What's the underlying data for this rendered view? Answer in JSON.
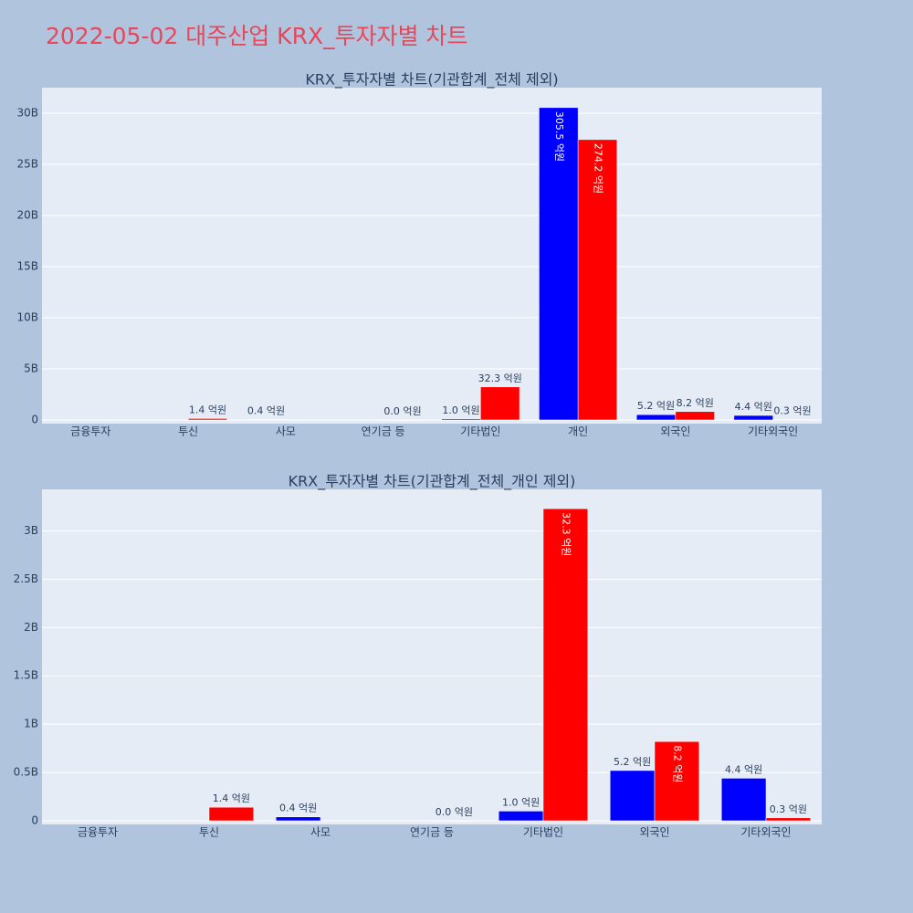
{
  "title": "2022-05-02 대주산업 KRX_투자자별 차트",
  "chart_data": [
    {
      "type": "bar",
      "title": "KRX_투자자별 차트(기관합계_전체 제외)",
      "categories": [
        "금융투자",
        "투신",
        "사모",
        "연기금 등",
        "기타법인",
        "개인",
        "외국인",
        "기타외국인"
      ],
      "series": [
        {
          "color": "#0000ff",
          "values": [
            null,
            null,
            40000000,
            null,
            100000000,
            30550000000,
            520000000,
            440000000
          ],
          "value_labels": [
            null,
            null,
            "0.4 억원",
            null,
            "1.0 억원",
            "305.5 억원",
            "5.2 억원",
            "4.4 억원"
          ]
        },
        {
          "color": "#ff0000",
          "values": [
            null,
            140000000,
            null,
            0,
            3230000000,
            27420000000,
            820000000,
            30000000
          ],
          "value_labels": [
            null,
            "1.4 억원",
            null,
            "0.0 억원",
            "32.3 억원",
            "274.2 억원",
            "8.2 억원",
            "0.3 억원"
          ]
        }
      ],
      "ylim": [
        -360000000,
        32500000000
      ],
      "yticks": [
        0,
        {
          "value": 5000000000,
          "label": "5B"
        },
        {
          "value": 10000000000,
          "label": "10B"
        },
        {
          "value": 15000000000,
          "label": "15B"
        },
        {
          "value": 20000000000,
          "label": "20B"
        },
        {
          "value": 25000000000,
          "label": "25B"
        },
        {
          "value": 30000000000,
          "label": "30B"
        }
      ],
      "grid": true
    },
    {
      "type": "bar",
      "title": "KRX_투자자별 차트(기관합계_전체_개인 제외)",
      "categories": [
        "금융투자",
        "투신",
        "사모",
        "연기금 등",
        "기타법인",
        "외국인",
        "기타외국인"
      ],
      "series": [
        {
          "color": "#0000ff",
          "values": [
            null,
            null,
            40000000,
            null,
            100000000,
            520000000,
            440000000
          ],
          "value_labels": [
            null,
            null,
            "0.4 억원",
            null,
            "1.0 억원",
            "5.2 억원",
            "4.4 억원"
          ]
        },
        {
          "color": "#ff0000",
          "values": [
            null,
            140000000,
            null,
            0,
            3230000000,
            820000000,
            30000000
          ],
          "value_labels": [
            null,
            "1.4 억원",
            null,
            "0.0 억원",
            "32.3 억원",
            "8.2 억원",
            "0.3 억원"
          ]
        }
      ],
      "ylim": [
        -38000000,
        3430000000
      ],
      "yticks": [
        0,
        {
          "value": 500000000,
          "label": "0.5B"
        },
        {
          "value": 1000000000,
          "label": "1B"
        },
        {
          "value": 1500000000,
          "label": "1.5B"
        },
        {
          "value": 2000000000,
          "label": "2B"
        },
        {
          "value": 2500000000,
          "label": "2.5B"
        },
        {
          "value": 3000000000,
          "label": "3B"
        }
      ],
      "grid": true
    }
  ]
}
